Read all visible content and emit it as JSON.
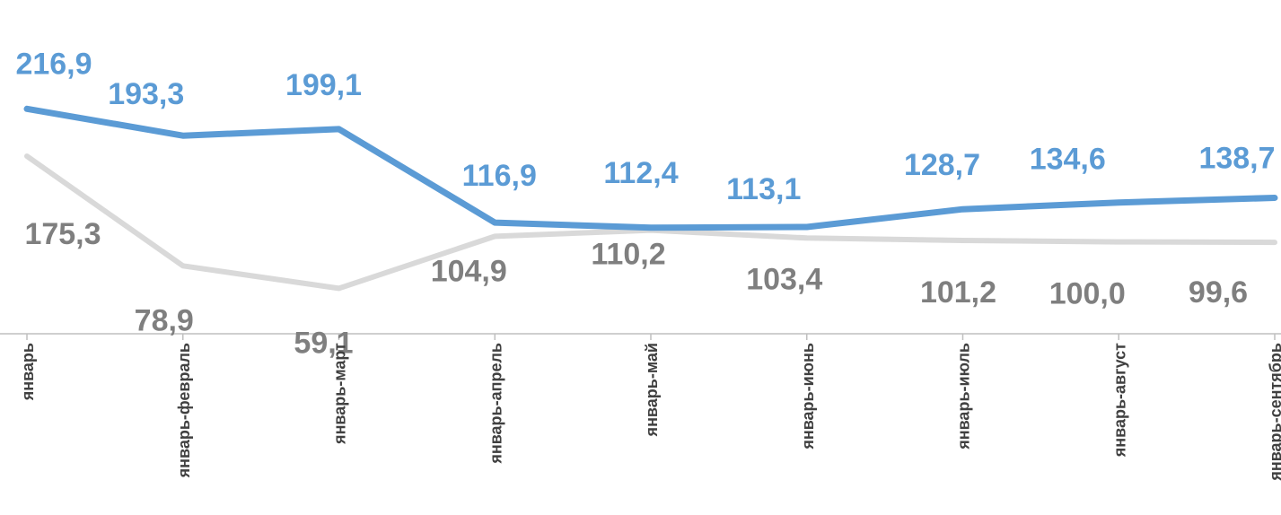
{
  "chart_data": {
    "type": "line",
    "categories": [
      "январь",
      "январь-февраль",
      "январь-март",
      "январь-апрель",
      "январь-май",
      "январь-июнь",
      "январь-июль",
      "январь-август",
      "январь-сентябрь"
    ],
    "series": [
      {
        "values": [
          216.9,
          193.3,
          199.1,
          116.9,
          112.4,
          113.1,
          128.7,
          134.6,
          138.7
        ],
        "labels": [
          "216,9",
          "193,3",
          "199,1",
          "116,9",
          "112,4",
          "113,1",
          "128,7",
          "134,6",
          "138,7"
        ],
        "color": "#5b9bd5"
      },
      {
        "values": [
          175.3,
          78.9,
          59.1,
          104.9,
          110.2,
          103.4,
          101.2,
          100.0,
          99.6
        ],
        "labels": [
          "175,3",
          "78,9",
          "59,1",
          "104,9",
          "110,2",
          "103,4",
          "101,2",
          "100,0",
          "99,6"
        ],
        "color": "#d9d9d9",
        "label_color": "#7f7f7f"
      }
    ],
    "ylim": [
      35,
      255
    ],
    "grid": false,
    "legend": "none",
    "axis_color": "#bfbfbf"
  }
}
